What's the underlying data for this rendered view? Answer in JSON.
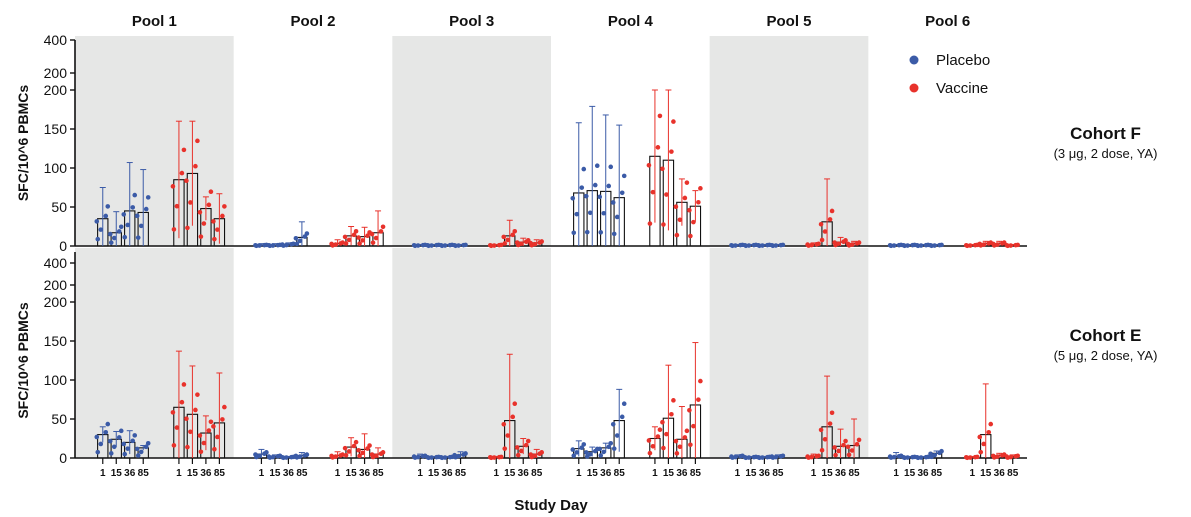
{
  "chart_data": {
    "type": "bar",
    "pools": [
      "Pool 1",
      "Pool 2",
      "Pool 3",
      "Pool 4",
      "Pool 5",
      "Pool 6"
    ],
    "days": [
      "1",
      "15",
      "36",
      "85"
    ],
    "xlabel": "Study Day",
    "ylabel": "SFC/10^6 PBMCs",
    "y_axis": {
      "lower_range": [
        0,
        200
      ],
      "lower_ticks": [
        0,
        50,
        100,
        150,
        200
      ],
      "upper_ticks": [
        200,
        400
      ],
      "break_at": 200
    },
    "shading": "alternate pools shaded grey (Pool 1, 3, 5)",
    "legend": {
      "placement": "top-right",
      "entries": [
        {
          "name": "Placebo",
          "color": "#3b5ba7"
        },
        {
          "name": "Vaccine",
          "color": "#e8322b"
        }
      ]
    },
    "panels": [
      {
        "cohort": "Cohort F",
        "description": "(3 μg, 2 dose, YA)",
        "series": [
          {
            "name": "Placebo",
            "pools": [
              {
                "pool": "Pool 1",
                "means": [
                  35,
                  17,
                  45,
                  43
                ],
                "errors": [
                  40,
                  27,
                  62,
                  55
                ]
              },
              {
                "pool": "Pool 2",
                "means": [
                  1,
                  1,
                  2,
                  11
                ],
                "errors": [
                  2,
                  2,
                  2,
                  20
                ]
              },
              {
                "pool": "Pool 3",
                "means": [
                  1,
                  1,
                  1,
                  1
                ],
                "errors": [
                  1,
                  1,
                  1,
                  1
                ]
              },
              {
                "pool": "Pool 4",
                "means": [
                  68,
                  71,
                  70,
                  62
                ],
                "errors": [
                  90,
                  108,
                  98,
                  93
                ]
              },
              {
                "pool": "Pool 5",
                "means": [
                  1,
                  1,
                  1,
                  1
                ],
                "errors": [
                  1,
                  1,
                  1,
                  1
                ]
              },
              {
                "pool": "Pool 6",
                "means": [
                  1,
                  1,
                  1,
                  1
                ],
                "errors": [
                  1,
                  1,
                  1,
                  1
                ]
              }
            ]
          },
          {
            "name": "Vaccine",
            "pools": [
              {
                "pool": "Pool 1",
                "means": [
                  85,
                  93,
                  48,
                  35
                ],
                "errors": [
                  75,
                  67,
                  15,
                  32
                ]
              },
              {
                "pool": "Pool 2",
                "means": [
                  3,
                  13,
                  12,
                  17
                ],
                "errors": [
                  5,
                  12,
                  12,
                  28
                ]
              },
              {
                "pool": "Pool 3",
                "means": [
                  1,
                  13,
                  5,
                  4
                ],
                "errors": [
                  1,
                  20,
                  5,
                  4
                ]
              },
              {
                "pool": "Pool 4",
                "means": [
                  115,
                  110,
                  56,
                  51
                ],
                "errors": [
                  85,
                  90,
                  30,
                  20
                ]
              },
              {
                "pool": "Pool 5",
                "means": [
                  2,
                  31,
                  5,
                  3
                ],
                "errors": [
                  2,
                  55,
                  6,
                  3
                ]
              },
              {
                "pool": "Pool 6",
                "means": [
                  1,
                  3,
                  3,
                  1
                ],
                "errors": [
                  1,
                  3,
                  3,
                  1
                ]
              }
            ]
          }
        ]
      },
      {
        "cohort": "Cohort E",
        "description": "(5 μg, 2 dose, YA)",
        "series": [
          {
            "name": "Placebo",
            "pools": [
              {
                "pool": "Pool 1",
                "means": [
                  30,
                  24,
                  20,
                  13
                ],
                "errors": [
                  10,
                  10,
                  15,
                  3
                ]
              },
              {
                "pool": "Pool 2",
                "means": [
                  5,
                  2,
                  1,
                  3
                ],
                "errors": [
                  6,
                  2,
                  1,
                  4
                ]
              },
              {
                "pool": "Pool 3",
                "means": [
                  2,
                  1,
                  1,
                  4
                ],
                "errors": [
                  3,
                  1,
                  1,
                  4
                ]
              },
              {
                "pool": "Pool 4",
                "means": [
                  12,
                  8,
                  13,
                  48
                ],
                "errors": [
                  10,
                  6,
                  6,
                  40
                ]
              },
              {
                "pool": "Pool 5",
                "means": [
                  2,
                  1,
                  1,
                  2
                ],
                "errors": [
                  2,
                  1,
                  1,
                  2
                ]
              },
              {
                "pool": "Pool 6",
                "means": [
                  2,
                  1,
                  1,
                  6
                ],
                "errors": [
                  5,
                  1,
                  1,
                  3
                ]
              }
            ]
          },
          {
            "name": "Vaccine",
            "pools": [
              {
                "pool": "Pool 1",
                "means": [
                  65,
                  56,
                  32,
                  45
                ],
                "errors": [
                  72,
                  62,
                  22,
                  64
                ]
              },
              {
                "pool": "Pool 2",
                "means": [
                  3,
                  14,
                  11,
                  5
                ],
                "errors": [
                  5,
                  12,
                  20,
                  8
                ]
              },
              {
                "pool": "Pool 3",
                "means": [
                  1,
                  48,
                  15,
                  5
                ],
                "errors": [
                  1,
                  85,
                  10,
                  6
                ]
              },
              {
                "pool": "Pool 4",
                "means": [
                  25,
                  51,
                  24,
                  68
                ],
                "errors": [
                  15,
                  68,
                  42,
                  80
                ]
              },
              {
                "pool": "Pool 5",
                "means": [
                  2,
                  40,
                  15,
                  16
                ],
                "errors": [
                  3,
                  65,
                  22,
                  34
                ]
              },
              {
                "pool": "Pool 6",
                "means": [
                  1,
                  30,
                  3,
                  2
                ],
                "errors": [
                  1,
                  65,
                  3,
                  2
                ]
              }
            ]
          }
        ]
      }
    ]
  }
}
